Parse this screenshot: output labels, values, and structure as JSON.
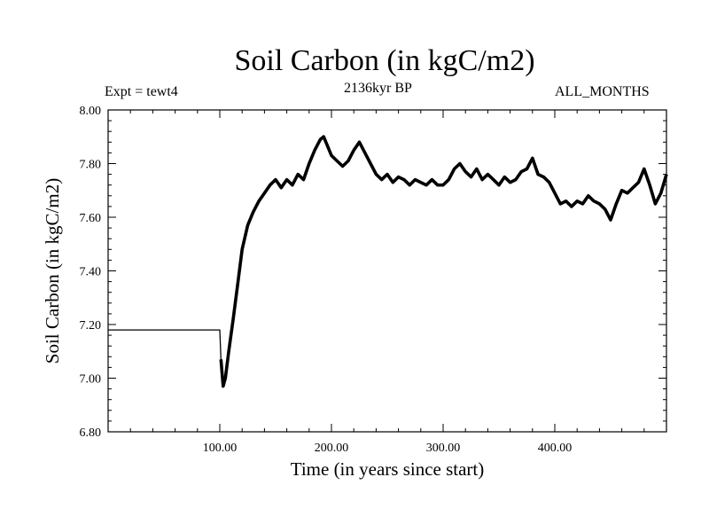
{
  "chart_data": {
    "type": "line",
    "title": "Soil Carbon (in kgC/m2)",
    "left_label": "Expt = tewt4",
    "center_label": "2136kyr BP",
    "right_label": "ALL_MONTHS",
    "xlabel": "Time (in years since start)",
    "ylabel": "Soil Carbon (in kgC/m2)",
    "xlim": [
      0,
      500
    ],
    "ylim": [
      6.8,
      8.0
    ],
    "x_ticks": [
      100,
      200,
      300,
      400
    ],
    "x_tick_labels": [
      "100.00",
      "200.00",
      "300.00",
      "400.00"
    ],
    "y_ticks": [
      6.8,
      7.0,
      7.2,
      7.4,
      7.6,
      7.8,
      8.0
    ],
    "y_tick_labels": [
      "6.80",
      "7.00",
      "7.20",
      "7.40",
      "7.60",
      "7.80",
      "8.00"
    ],
    "series": [
      {
        "name": "Soil Carbon",
        "x": [
          0,
          100,
          101,
          103,
          105,
          108,
          112,
          116,
          120,
          125,
          130,
          135,
          140,
          145,
          150,
          155,
          160,
          165,
          170,
          175,
          180,
          185,
          190,
          193,
          196,
          200,
          205,
          210,
          215,
          220,
          225,
          230,
          235,
          240,
          245,
          250,
          255,
          260,
          265,
          270,
          275,
          280,
          285,
          290,
          295,
          300,
          305,
          310,
          315,
          320,
          325,
          330,
          335,
          340,
          345,
          350,
          355,
          360,
          365,
          370,
          375,
          380,
          385,
          390,
          395,
          400,
          405,
          410,
          415,
          420,
          425,
          430,
          435,
          440,
          445,
          450,
          455,
          460,
          465,
          470,
          475,
          480,
          485,
          490,
          495,
          500
        ],
        "values": [
          7.18,
          7.18,
          7.07,
          6.97,
          7.0,
          7.1,
          7.22,
          7.35,
          7.48,
          7.57,
          7.62,
          7.66,
          7.69,
          7.72,
          7.74,
          7.71,
          7.74,
          7.72,
          7.76,
          7.74,
          7.8,
          7.85,
          7.89,
          7.9,
          7.87,
          7.83,
          7.81,
          7.79,
          7.81,
          7.85,
          7.88,
          7.84,
          7.8,
          7.76,
          7.74,
          7.76,
          7.73,
          7.75,
          7.74,
          7.72,
          7.74,
          7.73,
          7.72,
          7.74,
          7.72,
          7.72,
          7.74,
          7.78,
          7.8,
          7.77,
          7.75,
          7.78,
          7.74,
          7.76,
          7.74,
          7.72,
          7.75,
          7.73,
          7.74,
          7.77,
          7.78,
          7.82,
          7.76,
          7.75,
          7.73,
          7.69,
          7.65,
          7.66,
          7.64,
          7.66,
          7.65,
          7.68,
          7.66,
          7.65,
          7.63,
          7.59,
          7.65,
          7.7,
          7.69,
          7.71,
          7.73,
          7.78,
          7.72,
          7.65,
          7.69,
          7.76
        ]
      }
    ]
  }
}
